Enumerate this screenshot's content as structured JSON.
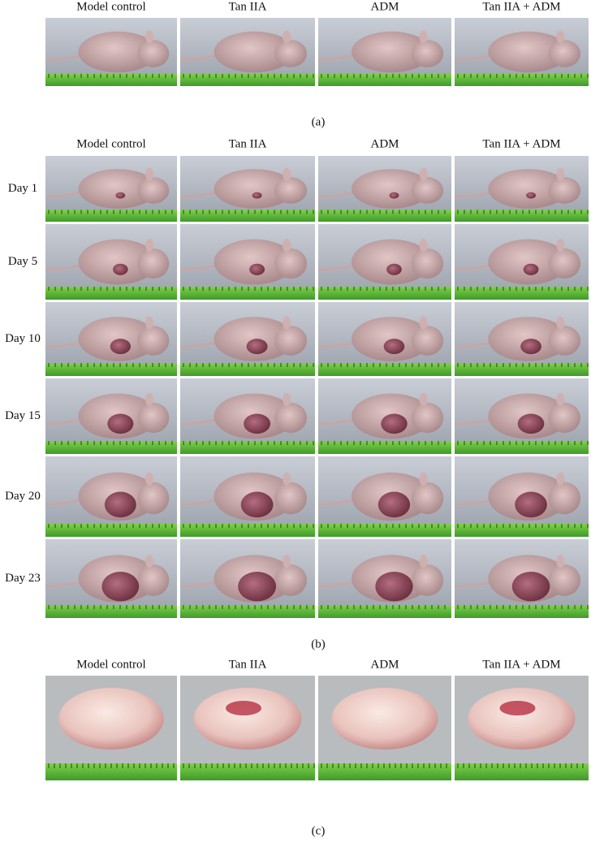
{
  "panel_a": {
    "column_headers": [
      "Model control",
      "Tan IIA",
      "ADM",
      "Tan IIA + ADM"
    ],
    "label": "(a)"
  },
  "panel_b": {
    "column_headers": [
      "Model control",
      "Tan IIA",
      "ADM",
      "Tan IIA + ADM"
    ],
    "row_labels": [
      "Day 1",
      "Day 5",
      "Day 10",
      "Day 15",
      "Day 20",
      "Day 23"
    ],
    "label": "(b)"
  },
  "panel_c": {
    "column_headers": [
      "Model control",
      "Tan IIA",
      "ADM",
      "Tan IIA + ADM"
    ],
    "label": "(c)"
  }
}
